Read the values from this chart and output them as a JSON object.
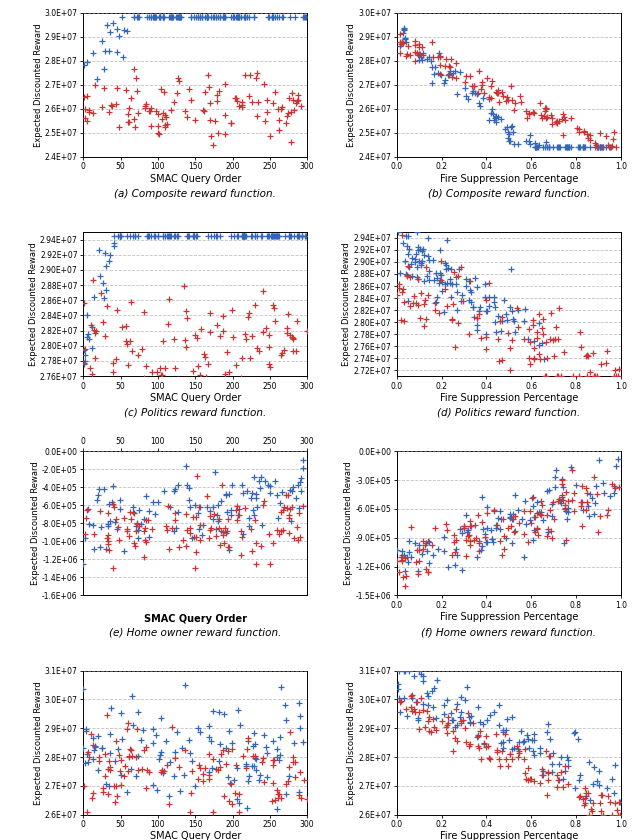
{
  "panels": [
    {
      "id": "a",
      "title": "(a) Composite reward function.",
      "xlabel": "SMAC Query Order",
      "ylabel": "Expected Discounted Reward",
      "xtype": "order",
      "xlim": [
        0,
        300
      ],
      "ylim": [
        24000000.0,
        30000000.0
      ],
      "yticks": [
        24000000.0,
        25000000.0,
        26000000.0,
        27000000.0,
        28000000.0,
        29000000.0,
        30000000.0
      ],
      "ytick_labels": [
        "2.4E+07",
        "2.5E+07",
        "2.6E+07",
        "2.7E+07",
        "2.8E+07",
        "2.9E+07",
        "3.0E+07"
      ],
      "xticks": [
        0,
        50,
        100,
        150,
        200,
        250,
        300
      ],
      "grid_axis": "y"
    },
    {
      "id": "b",
      "title": "(b) Composite reward function.",
      "xlabel": "Fire Suppression Percentage",
      "ylabel": "Expected Discounted Reward",
      "xtype": "percentage",
      "xlim": [
        0.0,
        1.0
      ],
      "ylim": [
        24000000.0,
        30000000.0
      ],
      "yticks": [
        24000000.0,
        25000000.0,
        26000000.0,
        27000000.0,
        28000000.0,
        29000000.0,
        30000000.0
      ],
      "ytick_labels": [
        "2.4E+07",
        "2.5E+07",
        "2.6E+07",
        "2.7E+07",
        "2.8E+07",
        "2.9E+07",
        "3.0E+07"
      ],
      "xticks": [
        0.0,
        0.2,
        0.4,
        0.6,
        0.8,
        1.0
      ],
      "grid_axis": "y"
    },
    {
      "id": "c",
      "title": "(c) Politics reward function.",
      "xlabel": "SMAC Query Order",
      "ylabel": "Expected Discounted Reward",
      "xtype": "order",
      "xlim": [
        0,
        300
      ],
      "ylim": [
        27600000.0,
        29500000.0
      ],
      "yticks": [
        27600000.0,
        27800000.0,
        28000000.0,
        28200000.0,
        28400000.0,
        28600000.0,
        28800000.0,
        29000000.0,
        29200000.0,
        29400000.0
      ],
      "ytick_labels": [
        "2.76E+07",
        "2.78E+07",
        "2.80E+07",
        "2.82E+07",
        "2.84E+07",
        "2.86E+07",
        "2.88E+07",
        "2.90E+07",
        "2.92E+07",
        "2.94E+07"
      ],
      "xticks": [
        0,
        50,
        100,
        150,
        200,
        250,
        300
      ],
      "grid_axis": "y"
    },
    {
      "id": "d",
      "title": "(d) Politics reward function.",
      "xlabel": "Fire Suppression Percentage",
      "ylabel": "Expected Discounted Reward",
      "xtype": "percentage",
      "xlim": [
        0.0,
        1.0
      ],
      "ylim": [
        27100000.0,
        29500000.0
      ],
      "yticks": [
        27200000.0,
        27400000.0,
        27600000.0,
        27800000.0,
        28000000.0,
        28200000.0,
        28400000.0,
        28600000.0,
        28800000.0,
        29000000.0,
        29200000.0,
        29400000.0
      ],
      "ytick_labels": [
        "2.72E+07",
        "2.74E+07",
        "2.76E+07",
        "2.78E+07",
        "2.80E+07",
        "2.82E+07",
        "2.84E+07",
        "2.86E+07",
        "2.88E+07",
        "2.90E+07",
        "2.92E+07",
        "2.94E+07"
      ],
      "xticks": [
        0.0,
        0.2,
        0.4,
        0.6,
        0.8,
        1.0
      ],
      "grid_axis": "y"
    },
    {
      "id": "e",
      "title": "(e) Home owner reward function.",
      "xlabel": "SMAC Query Order",
      "ylabel": "Expected Discounted Reward",
      "xtype": "order",
      "xlim": [
        0,
        300
      ],
      "ylim": [
        -1600000.0,
        0.0
      ],
      "yticks": [
        0.0,
        -200000.0,
        -400000.0,
        -600000.0,
        -800000.0,
        -1000000.0,
        -1200000.0,
        -1400000.0,
        -1600000.0
      ],
      "ytick_labels": [
        "0.0E+00",
        "-2.0E+05",
        "-4.0E+05",
        "-6.0E+05",
        "-8.0E+05",
        "-1.0E+06",
        "-1.2E+06",
        "-1.4E+06",
        "-1.6E+06"
      ],
      "xticks": [
        0,
        50,
        100,
        150,
        200,
        250,
        300
      ],
      "grid_axis": "y"
    },
    {
      "id": "f",
      "title": "(f) Home owners reward function.",
      "xlabel": "Fire Suppression Percentage",
      "ylabel": "Expected Discounted Reward",
      "xtype": "percentage",
      "xlim": [
        0.0,
        1.0
      ],
      "ylim": [
        -1500000.0,
        0.0
      ],
      "yticks": [
        0.0,
        -300000.0,
        -600000.0,
        -900000.0,
        -1200000.0,
        -1500000.0
      ],
      "ytick_labels": [
        "0.0E+00",
        "-3.0E+05",
        "-6.0E+05",
        "-9.0E+05",
        "-1.2E+06",
        "-1.5E+06"
      ],
      "xticks": [
        0.0,
        0.2,
        0.4,
        0.6,
        0.8,
        1.0
      ],
      "grid_axis": "y"
    },
    {
      "id": "g",
      "title": "(g) Timber reward function.",
      "xlabel": "SMAC Query Order",
      "ylabel": "Expected Discounted Reward",
      "xtype": "order",
      "xlim": [
        0,
        300
      ],
      "ylim": [
        26000000.0,
        31000000.0
      ],
      "yticks": [
        26000000.0,
        27000000.0,
        28000000.0,
        29000000.0,
        30000000.0,
        31000000.0
      ],
      "ytick_labels": [
        "2.6E+07",
        "2.7E+07",
        "2.8E+07",
        "2.9E+07",
        "3.0E+07",
        "3.1E+07"
      ],
      "xticks": [
        0,
        50,
        100,
        150,
        200,
        250,
        300
      ],
      "grid_axis": "y"
    },
    {
      "id": "h",
      "title": "(h) Timber reward function.",
      "xlabel": "Fire Suppression Percentage",
      "ylabel": "Expected Discounted Reward",
      "xtype": "percentage",
      "xlim": [
        0.0,
        1.0
      ],
      "ylim": [
        26000000.0,
        31000000.0
      ],
      "yticks": [
        26000000.0,
        27000000.0,
        28000000.0,
        29000000.0,
        30000000.0,
        31000000.0
      ],
      "ytick_labels": [
        "2.6E+07",
        "2.7E+07",
        "2.8E+07",
        "2.9E+07",
        "3.0E+07",
        "3.1E+07"
      ],
      "xticks": [
        0.0,
        0.2,
        0.4,
        0.6,
        0.8,
        1.0
      ],
      "grid_axis": "y"
    }
  ],
  "blue_color": "#3366BB",
  "red_color": "#CC3333",
  "marker_size": 18,
  "marker_lw": 0.9,
  "grid_color": "#999999",
  "grid_style": "--",
  "grid_alpha": 0.6,
  "grid_lw": 0.6,
  "spine_lw": 0.7,
  "tick_labelsize": 5.5,
  "xlabel_fontsize": 7,
  "ylabel_fontsize": 6,
  "caption_fontsize": 7.5
}
